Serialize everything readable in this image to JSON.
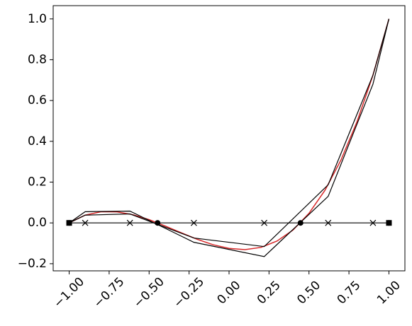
{
  "chart_data": {
    "type": "line",
    "xlim": [
      -1.1,
      1.1
    ],
    "ylim": [
      -0.235,
      1.065
    ],
    "xticks": [
      {
        "value": -1.0,
        "label": "−1.00"
      },
      {
        "value": -0.75,
        "label": "−0.75"
      },
      {
        "value": -0.5,
        "label": "−0.50"
      },
      {
        "value": -0.25,
        "label": "−0.25"
      },
      {
        "value": 0.0,
        "label": "0.00"
      },
      {
        "value": 0.25,
        "label": "0.25"
      },
      {
        "value": 0.5,
        "label": "0.50"
      },
      {
        "value": 0.75,
        "label": "0.75"
      },
      {
        "value": 1.0,
        "label": "1.00"
      }
    ],
    "yticks": [
      {
        "value": -0.2,
        "label": "−0.2"
      },
      {
        "value": 0.0,
        "label": "0.0"
      },
      {
        "value": 0.2,
        "label": "0.2"
      },
      {
        "value": 0.4,
        "label": "0.4"
      },
      {
        "value": 0.6,
        "label": "0.6"
      },
      {
        "value": 0.8,
        "label": "0.8"
      },
      {
        "value": 1.0,
        "label": "1.0"
      }
    ],
    "series": [
      {
        "color": "#d62728",
        "x": [
          -1,
          -0.9,
          -0.8,
          -0.7,
          -0.6,
          -0.5,
          -0.4,
          -0.3,
          -0.2,
          -0.1,
          0,
          0.1,
          0.2,
          0.3,
          0.4,
          0.5,
          0.6,
          0.7,
          0.8,
          0.9,
          1
        ],
        "values": [
          0,
          0.038,
          0.055,
          0.054,
          0.04,
          0.016,
          -0.015,
          -0.048,
          -0.08,
          -0.107,
          -0.125,
          -0.131,
          -0.12,
          -0.089,
          -0.035,
          0.047,
          0.16,
          0.308,
          0.495,
          0.724,
          1
        ]
      },
      {
        "color": "#000000",
        "x": [
          -1,
          -0.9,
          -0.62,
          -0.22,
          0.22,
          0.62,
          0.9,
          1
        ],
        "values": [
          0,
          0.038,
          0.044,
          -0.074,
          -0.116,
          0.187,
          0.724,
          1
        ]
      },
      {
        "color": "#000000",
        "x": [
          -1,
          -0.9,
          -0.62,
          -0.22,
          0.22,
          0.62,
          0.9,
          1
        ],
        "values": [
          0,
          0.055,
          0.058,
          -0.095,
          -0.165,
          0.13,
          0.68,
          1
        ]
      },
      {
        "color": "#000000",
        "x": [
          -1,
          1
        ],
        "values": [
          0,
          0
        ]
      },
      {
        "color": "#000000",
        "marker": "x",
        "linestyle": "none",
        "x": [
          -0.9,
          -0.62,
          -0.22,
          0.22,
          0.62,
          0.9
        ],
        "values": [
          0,
          0,
          0,
          0,
          0,
          0
        ]
      },
      {
        "color": "#000000",
        "marker": "o",
        "linestyle": "none",
        "x": [
          -1,
          -0.447,
          0.447,
          1
        ],
        "values": [
          0,
          0,
          0,
          0
        ]
      },
      {
        "color": "#000000",
        "marker": "s",
        "linestyle": "none",
        "x": [
          -1,
          1
        ],
        "values": [
          0,
          0
        ]
      }
    ]
  }
}
